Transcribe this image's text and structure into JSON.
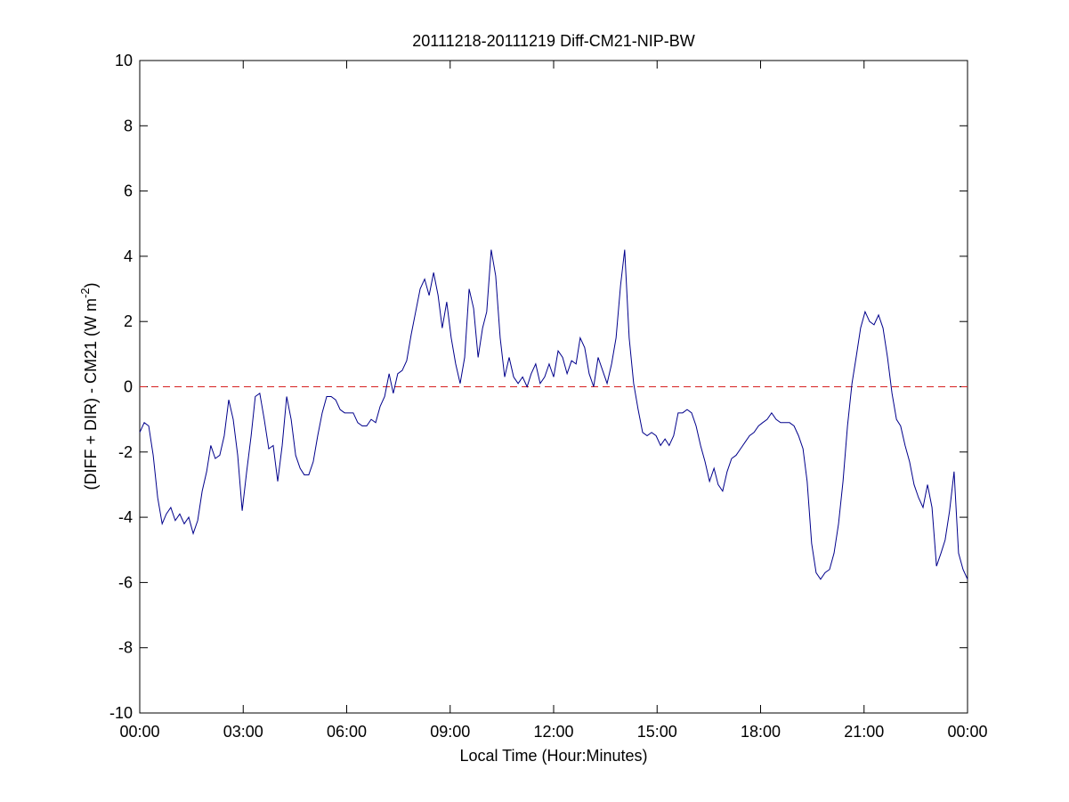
{
  "chart_data": {
    "type": "line",
    "title": "20111218-20111219 Diff-CM21-NIP-BW",
    "xlabel": "Local Time (Hour:Minutes)",
    "ylabel": {
      "text": "(DIFF + DIR) - CM21 (W m",
      "superscript": "-2",
      "suffix": ")"
    },
    "xlim": [
      0,
      24
    ],
    "ylim": [
      -10,
      10
    ],
    "xticks": [
      {
        "value": 0,
        "label": "00:00"
      },
      {
        "value": 3,
        "label": "03:00"
      },
      {
        "value": 6,
        "label": "06:00"
      },
      {
        "value": 9,
        "label": "09:00"
      },
      {
        "value": 12,
        "label": "12:00"
      },
      {
        "value": 15,
        "label": "15:00"
      },
      {
        "value": 18,
        "label": "18:00"
      },
      {
        "value": 21,
        "label": "21:00"
      },
      {
        "value": 24,
        "label": "00:00"
      }
    ],
    "yticks": [
      -10,
      -8,
      -6,
      -4,
      -2,
      0,
      2,
      4,
      6,
      8,
      10
    ],
    "grid": false,
    "reference_line": {
      "value": 0,
      "color": "#d62020",
      "style": "dashed"
    },
    "x": [
      0,
      0.13,
      0.26,
      0.39,
      0.52,
      0.65,
      0.77,
      0.9,
      1.03,
      1.16,
      1.29,
      1.42,
      1.55,
      1.68,
      1.81,
      1.94,
      2.06,
      2.19,
      2.32,
      2.45,
      2.58,
      2.71,
      2.84,
      2.97,
      3.1,
      3.23,
      3.35,
      3.48,
      3.61,
      3.74,
      3.87,
      4,
      4.13,
      4.26,
      4.39,
      4.52,
      4.65,
      4.77,
      4.9,
      5.03,
      5.16,
      5.29,
      5.42,
      5.55,
      5.68,
      5.81,
      5.94,
      6.06,
      6.19,
      6.32,
      6.45,
      6.58,
      6.71,
      6.84,
      6.97,
      7.1,
      7.23,
      7.35,
      7.48,
      7.61,
      7.74,
      7.87,
      8,
      8.13,
      8.26,
      8.39,
      8.52,
      8.65,
      8.77,
      8.9,
      9.03,
      9.16,
      9.29,
      9.42,
      9.55,
      9.68,
      9.81,
      9.94,
      10.06,
      10.19,
      10.32,
      10.45,
      10.58,
      10.71,
      10.84,
      10.97,
      11.1,
      11.23,
      11.35,
      11.48,
      11.61,
      11.74,
      11.87,
      12,
      12.13,
      12.26,
      12.39,
      12.52,
      12.65,
      12.77,
      12.9,
      13.03,
      13.16,
      13.29,
      13.42,
      13.55,
      13.68,
      13.81,
      13.94,
      14.06,
      14.19,
      14.32,
      14.45,
      14.58,
      14.71,
      14.84,
      14.97,
      15.1,
      15.23,
      15.35,
      15.48,
      15.61,
      15.74,
      15.87,
      16,
      16.13,
      16.26,
      16.39,
      16.52,
      16.65,
      16.77,
      16.9,
      17.03,
      17.16,
      17.29,
      17.42,
      17.55,
      17.68,
      17.81,
      17.94,
      18.06,
      18.19,
      18.32,
      18.45,
      18.58,
      18.71,
      18.84,
      18.97,
      19.1,
      19.23,
      19.35,
      19.48,
      19.61,
      19.74,
      19.87,
      20,
      20.13,
      20.26,
      20.39,
      20.52,
      20.65,
      20.77,
      20.9,
      21.03,
      21.16,
      21.29,
      21.42,
      21.55,
      21.68,
      21.81,
      21.94,
      22.06,
      22.19,
      22.32,
      22.45,
      22.58,
      22.71,
      22.84,
      22.97,
      23.1,
      23.23,
      23.35,
      23.48,
      23.61,
      23.74,
      23.87,
      24
    ],
    "series": [
      {
        "color": "#00008b",
        "values": [
          -1.4,
          -1.1,
          -1.2,
          -2.1,
          -3.4,
          -4.2,
          -3.9,
          -3.7,
          -4.1,
          -3.9,
          -4.2,
          -4.0,
          -4.5,
          -4.1,
          -3.2,
          -2.6,
          -1.8,
          -2.2,
          -2.1,
          -1.5,
          -0.4,
          -1.0,
          -2.1,
          -3.8,
          -2.6,
          -1.5,
          -0.3,
          -0.2,
          -1.0,
          -1.9,
          -1.8,
          -2.9,
          -1.8,
          -0.3,
          -1.0,
          -2.1,
          -2.5,
          -2.7,
          -2.7,
          -2.3,
          -1.5,
          -0.8,
          -0.3,
          -0.3,
          -0.4,
          -0.7,
          -0.8,
          -0.8,
          -0.8,
          -1.1,
          -1.2,
          -1.2,
          -1.0,
          -1.1,
          -0.6,
          -0.3,
          0.4,
          -0.2,
          0.4,
          0.5,
          0.8,
          1.6,
          2.3,
          3.0,
          3.3,
          2.8,
          3.5,
          2.8,
          1.8,
          2.6,
          1.5,
          0.7,
          0.1,
          0.9,
          3.0,
          2.4,
          0.9,
          1.8,
          2.3,
          4.2,
          3.4,
          1.5,
          0.3,
          0.9,
          0.3,
          0.1,
          0.3,
          0.0,
          0.4,
          0.7,
          0.1,
          0.3,
          0.7,
          0.3,
          1.1,
          0.9,
          0.4,
          0.8,
          0.7,
          1.5,
          1.2,
          0.4,
          0.0,
          0.9,
          0.5,
          0.1,
          0.7,
          1.5,
          3.1,
          4.2,
          1.5,
          0.1,
          -0.7,
          -1.4,
          -1.5,
          -1.4,
          -1.5,
          -1.8,
          -1.6,
          -1.8,
          -1.5,
          -0.8,
          -0.8,
          -0.7,
          -0.8,
          -1.2,
          -1.8,
          -2.3,
          -2.9,
          -2.5,
          -3.0,
          -3.2,
          -2.6,
          -2.2,
          -2.1,
          -1.9,
          -1.7,
          -1.5,
          -1.4,
          -1.2,
          -1.1,
          -1.0,
          -0.8,
          -1.0,
          -1.1,
          -1.1,
          -1.1,
          -1.2,
          -1.5,
          -1.9,
          -2.9,
          -4.8,
          -5.7,
          -5.9,
          -5.7,
          -5.6,
          -5.1,
          -4.2,
          -2.9,
          -1.2,
          0.1,
          0.9,
          1.8,
          2.3,
          2.0,
          1.9,
          2.2,
          1.8,
          0.9,
          -0.2,
          -1.0,
          -1.2,
          -1.8,
          -2.3,
          -3.0,
          -3.4,
          -3.7,
          -3.0,
          -3.7,
          -5.5,
          -5.1,
          -4.7,
          -3.8,
          -2.6,
          -5.1,
          -5.6,
          -5.9
        ]
      }
    ]
  }
}
